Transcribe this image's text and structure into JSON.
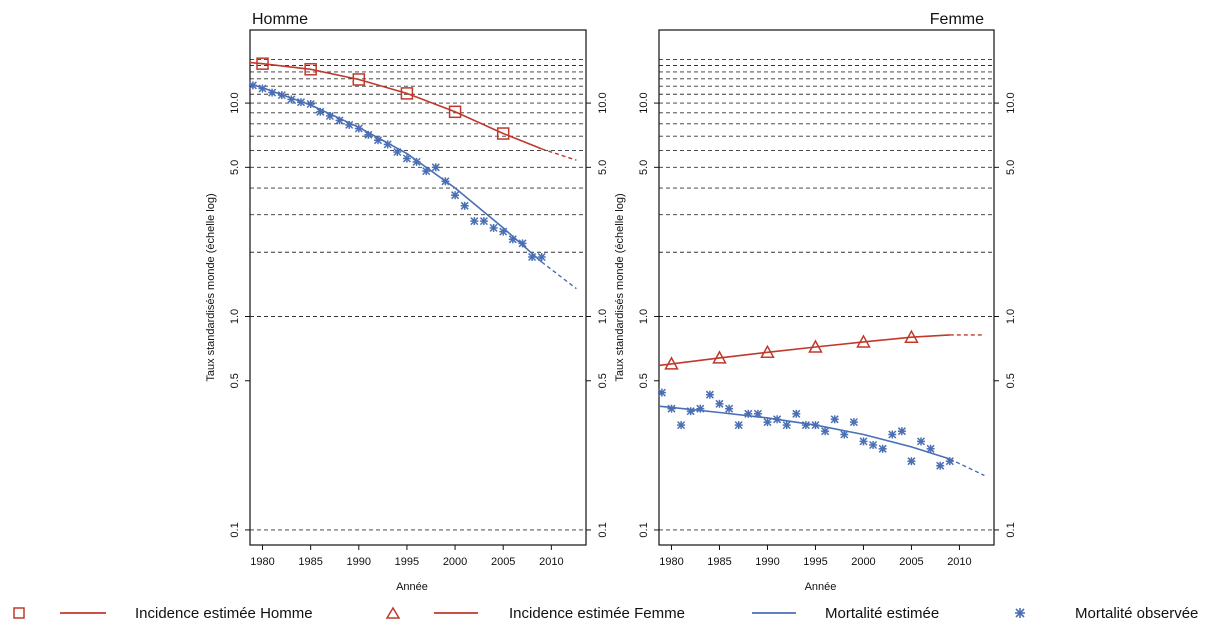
{
  "colors": {
    "incidence": "#c0392b",
    "mortality": "#4a6fb5",
    "grid": "#333333"
  },
  "yaxis_label": "Taux standardisés monde (échelle log)",
  "xaxis_label": "Année",
  "legend": [
    {
      "key": "incidence_homme",
      "label": "Incidence  estimée Homme",
      "marker": "square"
    },
    {
      "key": "incidence_femme",
      "label": "Incidence estimée Femme",
      "marker": "triangle"
    },
    {
      "key": "mortalite_estimee",
      "label": "Mortalité estimée",
      "marker": "line"
    },
    {
      "key": "mortalite_observee",
      "label": "Mortalité observée",
      "marker": "asterisk"
    }
  ],
  "chart_data": [
    {
      "type": "line",
      "title": "Homme",
      "title_align": "left",
      "ylabel": "Taux standardisés monde (échelle log)",
      "xlabel": "Année",
      "yscale": "log",
      "ylim": [
        0.085,
        22
      ],
      "xlim": [
        1978.7,
        2013.6
      ],
      "xticks": [
        1980,
        1985,
        1990,
        1995,
        2000,
        2005,
        2010
      ],
      "yticks": [
        0.1,
        0.5,
        1.0,
        5.0,
        10.0
      ],
      "ytick_labels": [
        "0.1",
        "0.5",
        "1.0",
        "5.0",
        "10.0"
      ],
      "gridlines_y": [
        1,
        2,
        3,
        4,
        5,
        6,
        7,
        8,
        9,
        10,
        11,
        12,
        13,
        14,
        15,
        16
      ],
      "series": [
        {
          "name": "Incidence  estimée Homme",
          "role": "incidence",
          "x": [
            1978.7,
            1980,
            1985,
            1990,
            1995,
            2000,
            2005,
            2009,
            2012.6
          ],
          "y": [
            15.5,
            15.3,
            14.4,
            12.9,
            11.1,
            9.1,
            7.2,
            6.1,
            5.4
          ],
          "projection_from": 2009,
          "marker_x": [
            1980,
            1985,
            1990,
            1995,
            2000,
            2005
          ],
          "marker_y": [
            15.3,
            14.4,
            12.9,
            11.1,
            9.1,
            7.2
          ]
        },
        {
          "name": "Mortalité estimée",
          "role": "mortality",
          "x": [
            1978.7,
            1980,
            1985,
            1990,
            1995,
            2000,
            2005,
            2009,
            2012.6
          ],
          "y": [
            12.3,
            11.8,
            9.8,
            7.7,
            5.8,
            4.0,
            2.6,
            1.8,
            1.35
          ],
          "projection_from": 2009
        },
        {
          "name": "Mortalité observée",
          "role": "observed",
          "x": [
            1979,
            1980,
            1981,
            1982,
            1983,
            1984,
            1985,
            1986,
            1987,
            1988,
            1989,
            1990,
            1991,
            1992,
            1993,
            1994,
            1995,
            1996,
            1997,
            1998,
            1999,
            2000,
            2001,
            2002,
            2003,
            2004,
            2005,
            2006,
            2007,
            2008,
            2009
          ],
          "y": [
            12.1,
            11.7,
            11.2,
            10.9,
            10.4,
            10.1,
            9.9,
            9.1,
            8.7,
            8.3,
            7.9,
            7.6,
            7.1,
            6.7,
            6.4,
            5.9,
            5.5,
            5.3,
            4.8,
            5.0,
            4.3,
            3.7,
            3.3,
            2.8,
            2.8,
            2.6,
            2.5,
            2.3,
            2.2,
            1.9,
            1.9
          ]
        }
      ]
    },
    {
      "type": "line",
      "title": "Femme",
      "title_align": "right",
      "ylabel": "Taux standardisés monde (échelle log)",
      "xlabel": "Année",
      "yscale": "log",
      "ylim": [
        0.085,
        22
      ],
      "xlim": [
        1978.7,
        2013.6
      ],
      "xticks": [
        1980,
        1985,
        1990,
        1995,
        2000,
        2005,
        2010
      ],
      "yticks": [
        0.1,
        0.5,
        1.0,
        5.0,
        10.0
      ],
      "ytick_labels": [
        "0.1",
        "0.5",
        "1.0",
        "5.0",
        "10.0"
      ],
      "gridlines_y": [
        1,
        2,
        3,
        4,
        5,
        6,
        7,
        8,
        9,
        10,
        11,
        12,
        13,
        14,
        15,
        16
      ],
      "series": [
        {
          "name": "Incidence estimée Femme",
          "role": "incidence",
          "x": [
            1978.7,
            1980,
            1985,
            1990,
            1995,
            2000,
            2005,
            2009,
            2012.6
          ],
          "y": [
            0.59,
            0.6,
            0.64,
            0.68,
            0.72,
            0.76,
            0.8,
            0.82,
            0.82
          ],
          "projection_from": 2009,
          "marker_x": [
            1980,
            1985,
            1990,
            1995,
            2000,
            2005
          ],
          "marker_y": [
            0.6,
            0.64,
            0.68,
            0.72,
            0.76,
            0.8
          ]
        },
        {
          "name": "Mortalité estimée",
          "role": "mortality",
          "x": [
            1978.7,
            1980,
            1985,
            1990,
            1995,
            2000,
            2005,
            2009,
            2012.6
          ],
          "y": [
            0.38,
            0.375,
            0.355,
            0.335,
            0.31,
            0.28,
            0.245,
            0.215,
            0.18
          ],
          "projection_from": 2009
        },
        {
          "name": "Mortalité observée",
          "role": "observed",
          "x": [
            1979,
            1980,
            1981,
            1982,
            1983,
            1984,
            1985,
            1986,
            1987,
            1988,
            1989,
            1990,
            1991,
            1992,
            1993,
            1994,
            1995,
            1996,
            1997,
            1998,
            1999,
            2000,
            2001,
            2002,
            2003,
            2004,
            2005,
            2006,
            2007,
            2008,
            2009
          ],
          "y": [
            0.44,
            0.37,
            0.31,
            0.36,
            0.37,
            0.43,
            0.39,
            0.37,
            0.31,
            0.35,
            0.35,
            0.32,
            0.33,
            0.31,
            0.35,
            0.31,
            0.31,
            0.29,
            0.33,
            0.28,
            0.32,
            0.26,
            0.25,
            0.24,
            0.28,
            0.29,
            0.21,
            0.26,
            0.24,
            0.2,
            0.21
          ]
        }
      ]
    }
  ]
}
